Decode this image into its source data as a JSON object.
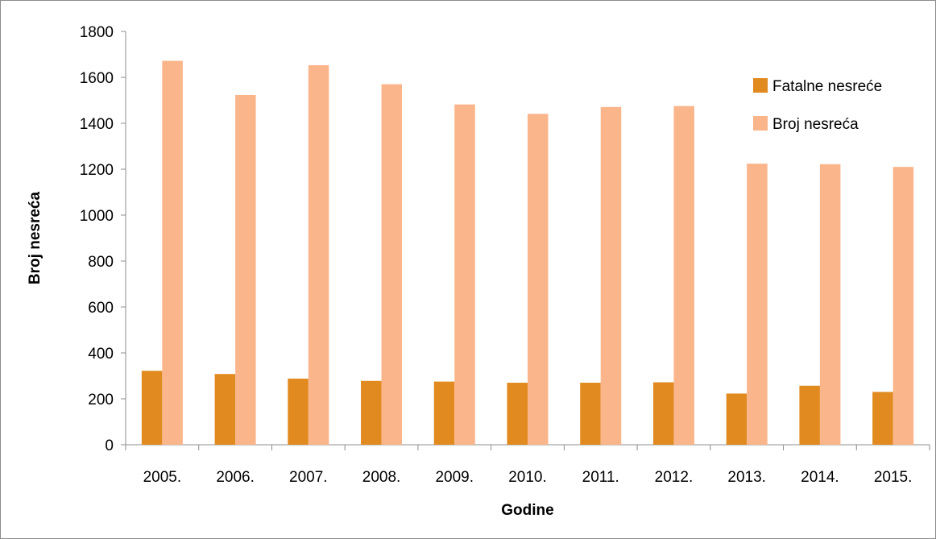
{
  "chart_data": {
    "type": "bar",
    "title": "",
    "xlabel": "Godine",
    "ylabel": "Broj nesreća",
    "ylim": [
      0,
      1800
    ],
    "yticks": [
      0,
      200,
      400,
      600,
      800,
      1000,
      1200,
      1400,
      1600,
      1800
    ],
    "grid": false,
    "legend_position": "top-right",
    "categories": [
      "2005.",
      "2006.",
      "2007.",
      "2008.",
      "2009.",
      "2010.",
      "2011.",
      "2012.",
      "2013.",
      "2014.",
      "2015."
    ],
    "series": [
      {
        "name": "Fatalne nesreće",
        "color": "#E08A1F",
        "values": [
          322,
          308,
          288,
          278,
          275,
          270,
          270,
          272,
          223,
          257,
          230
        ]
      },
      {
        "name": "Broj nesreća",
        "color": "#FBB58A",
        "values": [
          1672,
          1523,
          1653,
          1570,
          1482,
          1441,
          1471,
          1475,
          1224,
          1222,
          1210
        ]
      }
    ]
  }
}
